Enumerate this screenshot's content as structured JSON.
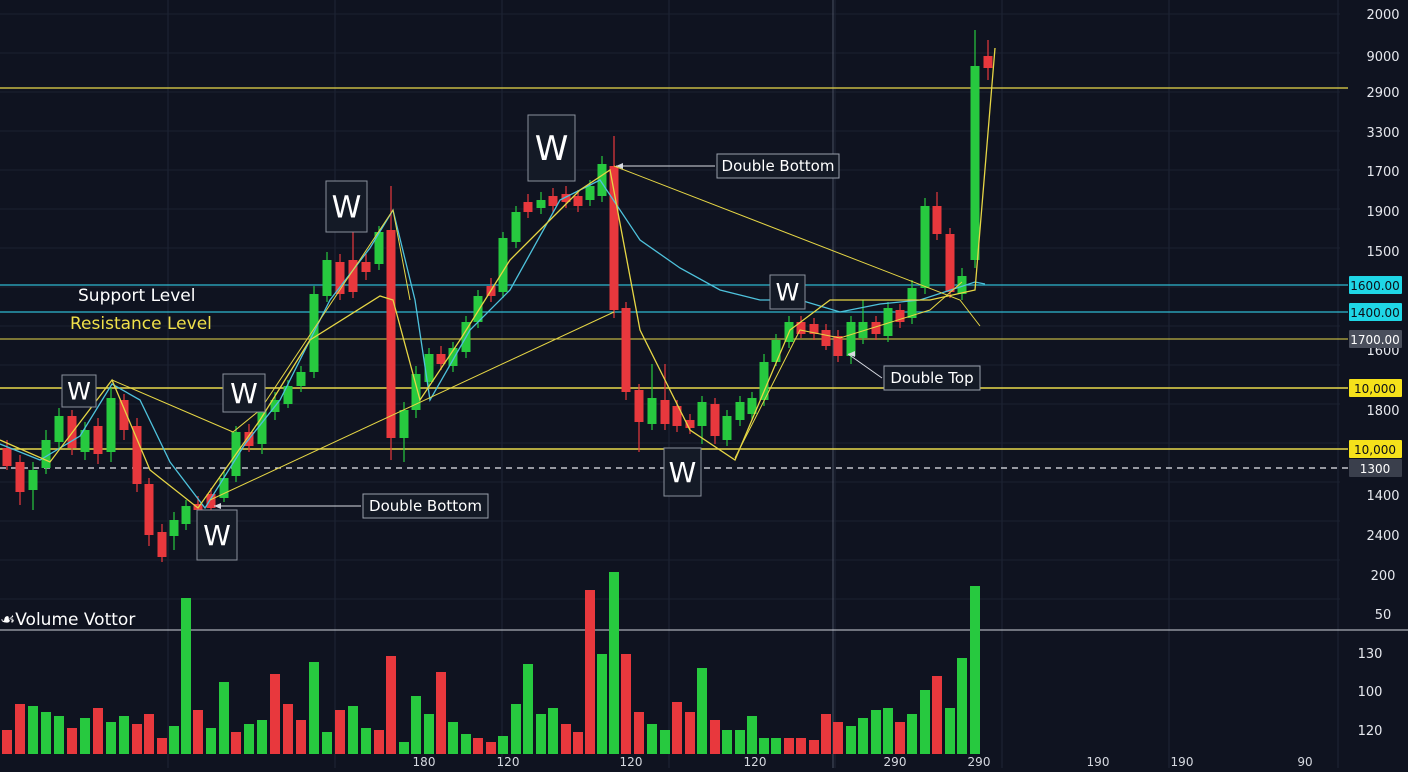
{
  "chart_data": {
    "type": "candlestick",
    "legend": {
      "support": "Support Level",
      "resistance": "Resistance Level"
    },
    "volume_label": "☙Volume Vottor",
    "price_axis_ticks": [
      "2000",
      "9000",
      "2900",
      "3300",
      "1700",
      "1900",
      "1500",
      "1600",
      "1800",
      "1300",
      "1400",
      "2400",
      "200",
      "50"
    ],
    "volume_axis_ticks": [
      "130",
      "100",
      "120"
    ],
    "x_ticks": [
      "180",
      "120",
      "120",
      "120",
      "290",
      "290",
      "190",
      "190",
      "90"
    ],
    "level_badges": [
      {
        "text": "1600.00",
        "color": "#1fd6e6"
      },
      {
        "text": "1400.00",
        "color": "#1fd6e6"
      },
      {
        "text": "1700.00",
        "color": "#4a4f5c"
      },
      {
        "text": "10,000",
        "color": "#f5e11a"
      },
      {
        "text": "10,000",
        "color": "#f5e11a"
      },
      {
        "text": "1300",
        "color": "#3a3f4c"
      }
    ],
    "annotations": {
      "pattern_letter": "W",
      "callouts": [
        "Double Bottom",
        "Double Bottom",
        "Double Top"
      ]
    },
    "colors": {
      "up": "#27c93f",
      "down": "#e8383d",
      "background": "#0f1320",
      "support": "#2fb8cf",
      "resistance": "#e9d94a"
    }
  }
}
